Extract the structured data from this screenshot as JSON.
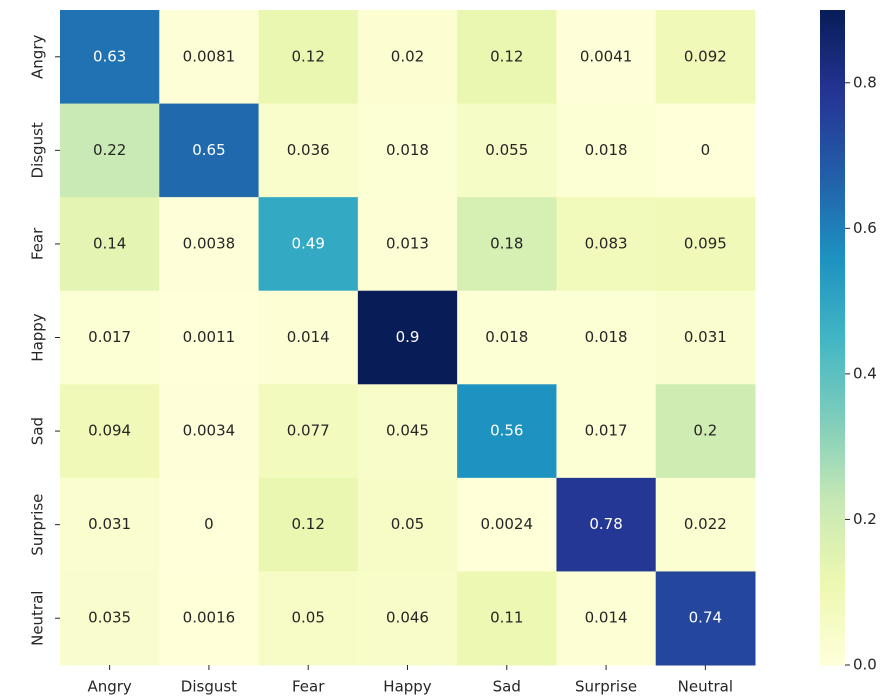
{
  "chart_data": {
    "type": "heatmap",
    "categories": [
      "Angry",
      "Disgust",
      "Fear",
      "Happy",
      "Sad",
      "Surprise",
      "Neutral"
    ],
    "y_categories": [
      "Angry",
      "Disgust",
      "Fear",
      "Happy",
      "Sad",
      "Surprise",
      "Neutral"
    ],
    "values": [
      [
        0.63,
        0.0081,
        0.12,
        0.02,
        0.12,
        0.0041,
        0.092
      ],
      [
        0.22,
        0.65,
        0.036,
        0.018,
        0.055,
        0.018,
        0
      ],
      [
        0.14,
        0.0038,
        0.49,
        0.013,
        0.18,
        0.083,
        0.095
      ],
      [
        0.017,
        0.0011,
        0.014,
        0.9,
        0.018,
        0.018,
        0.031
      ],
      [
        0.094,
        0.0034,
        0.077,
        0.045,
        0.56,
        0.017,
        0.2
      ],
      [
        0.031,
        0,
        0.12,
        0.05,
        0.0024,
        0.78,
        0.022
      ],
      [
        0.035,
        0.0016,
        0.05,
        0.046,
        0.11,
        0.014,
        0.74
      ]
    ],
    "colormap": "YlGnBu",
    "clim": [
      0,
      0.9
    ],
    "cticks": [
      {
        "value": 0,
        "label": "0.0"
      },
      0.2,
      0.4,
      0.6,
      0.8
    ]
  }
}
